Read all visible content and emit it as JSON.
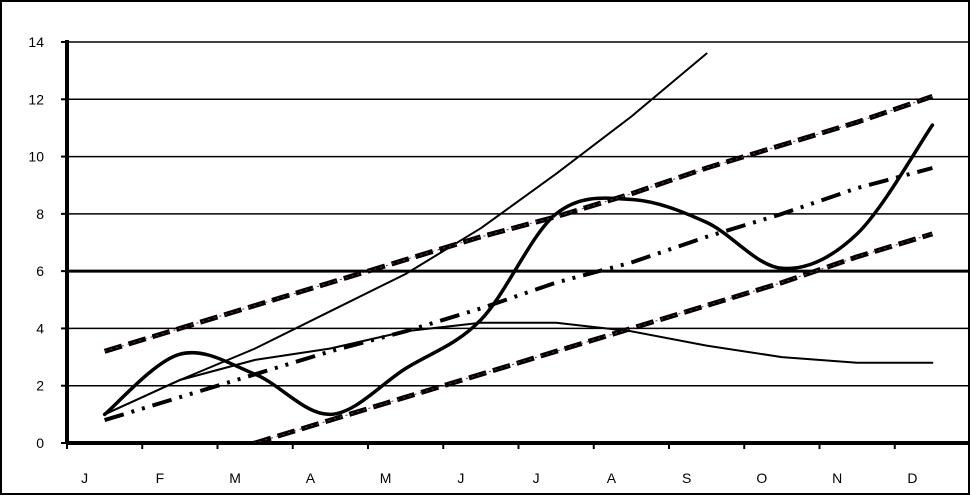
{
  "chart_data": {
    "type": "line",
    "title": "",
    "xlabel": "",
    "ylabel": "",
    "categories": [
      "J",
      "F",
      "M",
      "A",
      "M",
      "J",
      "J",
      "A",
      "S",
      "O",
      "N",
      "D"
    ],
    "ylim": [
      0,
      14
    ],
    "yticks": [
      0,
      2,
      4,
      6,
      8,
      10,
      12,
      14
    ],
    "grid": "horizontal",
    "legend": "none",
    "series": [
      {
        "style": "thin-solid",
        "values": [
          1.0,
          2.2,
          3.3,
          4.6,
          5.9,
          7.5,
          9.4,
          11.4,
          13.6,
          null,
          null,
          null
        ]
      },
      {
        "style": "thin-solid",
        "values": [
          1.0,
          2.2,
          2.9,
          3.3,
          3.9,
          4.2,
          4.2,
          3.9,
          3.4,
          3.0,
          2.8,
          2.8
        ]
      },
      {
        "style": "thick-solid",
        "smooth": true,
        "values": [
          1.0,
          3.1,
          2.4,
          1.0,
          2.6,
          4.3,
          8.0,
          8.5,
          7.7,
          6.1,
          7.3,
          11.1
        ]
      },
      {
        "style": "dashed-trend",
        "values": [
          3.2,
          4.0,
          4.8,
          5.6,
          6.4,
          7.2,
          7.9,
          8.7,
          9.6,
          10.4,
          11.2,
          12.1
        ]
      },
      {
        "style": "dashed-trend",
        "values": [
          -0.6,
          -0.3,
          0.0,
          0.8,
          1.6,
          2.4,
          3.2,
          4.0,
          4.8,
          5.6,
          6.5,
          7.3
        ]
      },
      {
        "style": "dash-dot-dot-trend",
        "values": [
          0.8,
          1.6,
          2.4,
          3.2,
          3.9,
          4.7,
          5.6,
          6.3,
          7.2,
          8.0,
          8.9,
          9.6
        ]
      }
    ]
  }
}
